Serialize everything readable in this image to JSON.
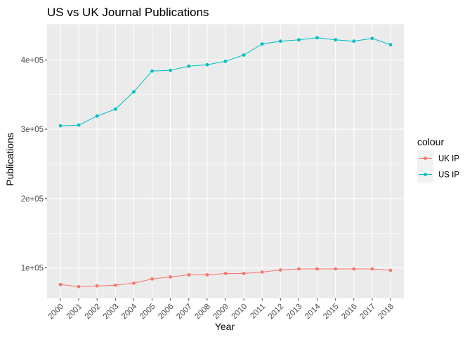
{
  "chart_data": {
    "type": "line",
    "title": "US vs UK Journal Publications",
    "xlabel": "Year",
    "ylabel": "Publications",
    "x": [
      "2000",
      "2001",
      "2002",
      "2003",
      "2004",
      "2005",
      "2006",
      "2007",
      "2008",
      "2009",
      "2010",
      "2011",
      "2012",
      "2013",
      "2014",
      "2015",
      "2016",
      "2017",
      "2018"
    ],
    "series": [
      {
        "name": "UK IP",
        "color": "#F8766D",
        "values": [
          76000,
          73000,
          74000,
          75000,
          78000,
          84000,
          87000,
          90000,
          90000,
          92000,
          92000,
          94000,
          97000,
          98500,
          98500,
          98500,
          98500,
          98500,
          96500
        ]
      },
      {
        "name": "US IP",
        "color": "#00BFC4",
        "values": [
          305000,
          306000,
          319000,
          329000,
          354000,
          384000,
          385000,
          391000,
          393000,
          398000,
          407000,
          423000,
          427000,
          429000,
          432000,
          429000,
          427000,
          431000,
          422000
        ]
      }
    ],
    "ylim": [
      56000,
      452000
    ],
    "y_ticks": [
      100000,
      200000,
      300000,
      400000
    ],
    "y_tick_labels": [
      "1e+05",
      "2e+05",
      "3e+05",
      "4e+05"
    ],
    "grid": true,
    "legend": {
      "title": "colour",
      "position": "right"
    },
    "panel_background": "#EBEBEB"
  }
}
